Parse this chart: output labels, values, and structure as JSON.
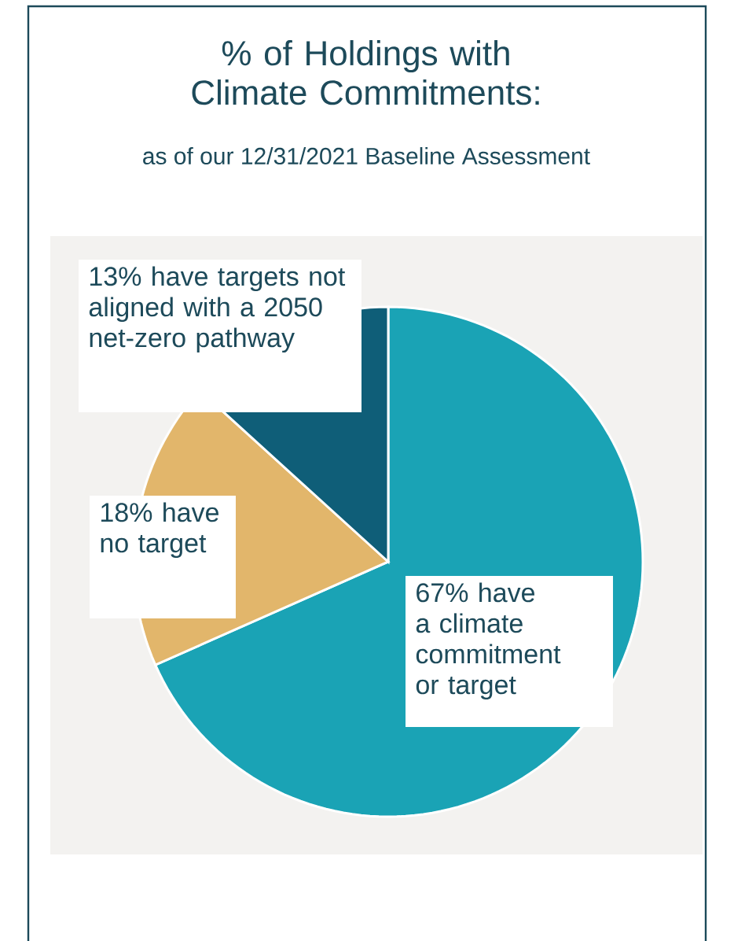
{
  "chart_data": {
    "type": "pie",
    "title": "% of Holdings with Climate Commitments:",
    "subtitle": "as of our 12/31/2021 Baseline Assessment",
    "categories": [
      "have a climate commitment or target",
      "have no target",
      "have targets not aligned with a 2050 net-zero pathway"
    ],
    "values": [
      67,
      18,
      13
    ],
    "value_labels": [
      "67%",
      "18%",
      "13%"
    ],
    "colors": [
      "#1aa3b5",
      "#e2b66b",
      "#0f5e78"
    ]
  }
}
